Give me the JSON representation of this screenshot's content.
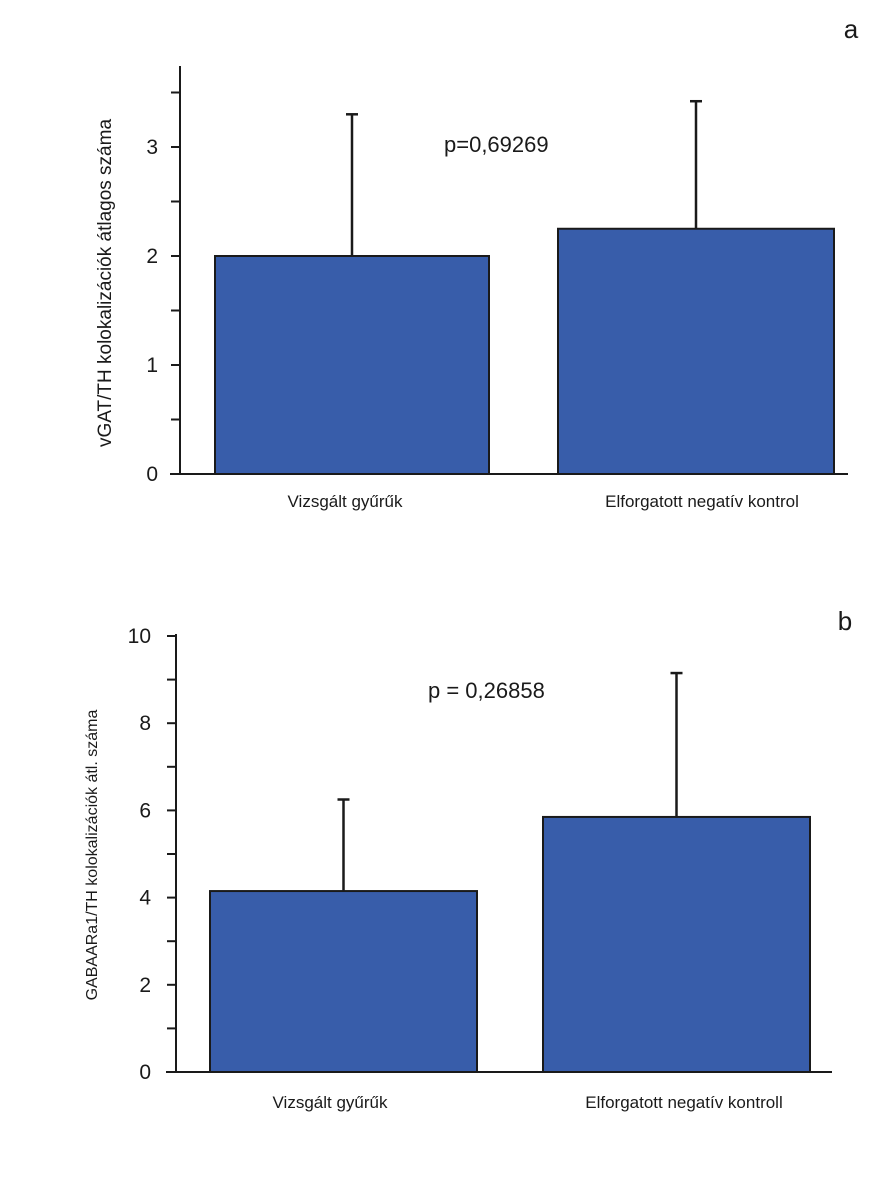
{
  "chart_data": [
    {
      "type": "bar",
      "panel_label": "a",
      "categories": [
        "Vizsgált gyűrűk",
        "Elforgatott negatív kontrol"
      ],
      "values": [
        2.0,
        2.25
      ],
      "error_upper": [
        3.3,
        3.42
      ],
      "ylabel": "vGAT/TH kolokalizációk átlagos száma",
      "ylim": [
        0,
        3.5
      ],
      "yticks": [
        0,
        1,
        2,
        3
      ],
      "annotation": "p=0,69269",
      "grid": false
    },
    {
      "type": "bar",
      "panel_label": "b",
      "categories": [
        "Vizsgált gyűrűk",
        "Elforgatott negatív kontroll"
      ],
      "values": [
        4.15,
        5.85
      ],
      "error_upper": [
        6.25,
        9.15
      ],
      "ylabel": "GABAARa1/TH kolokalizációk átl. száma",
      "ylim": [
        0,
        10
      ],
      "yticks": [
        0,
        2,
        4,
        6,
        8,
        10
      ],
      "annotation": "p = 0,26858",
      "grid": false
    }
  ]
}
